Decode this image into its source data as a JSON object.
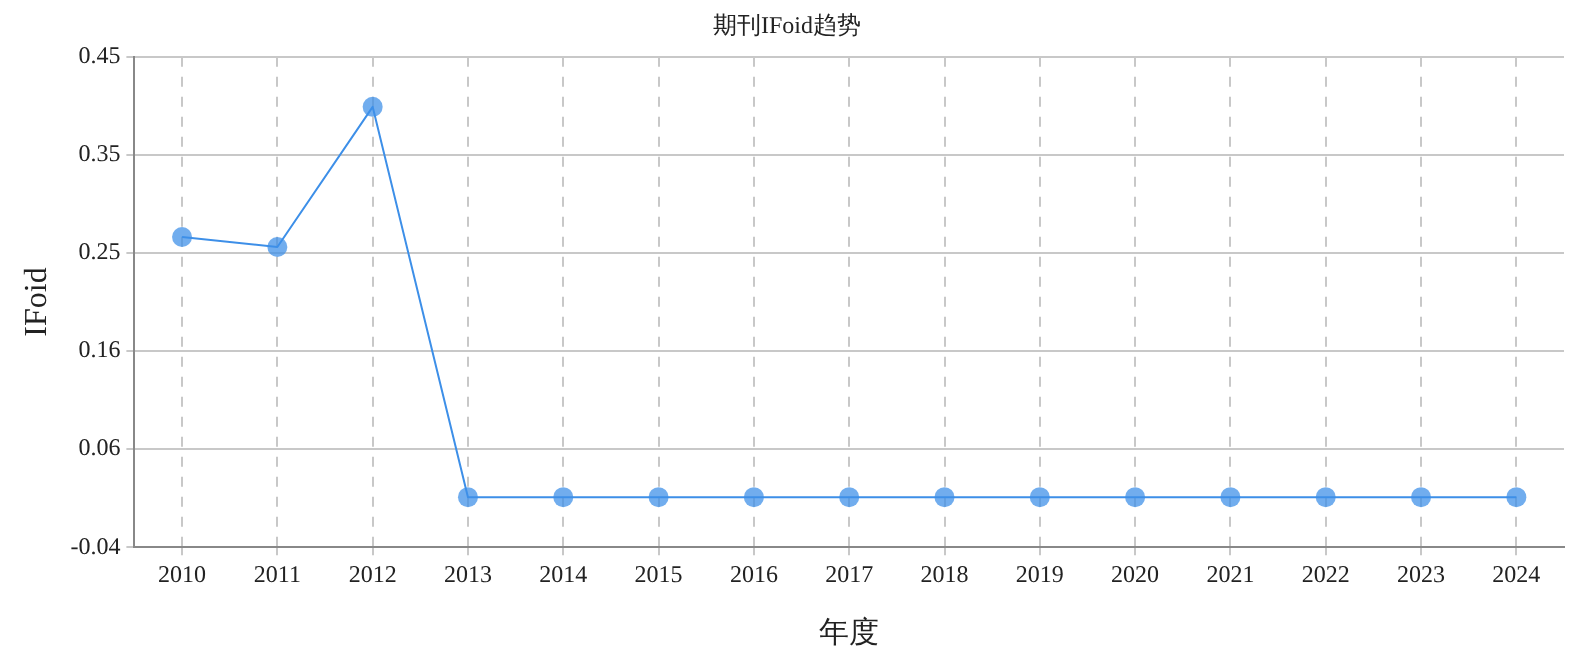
{
  "chart_data": {
    "type": "line",
    "title": "期刊IFoid趋势",
    "xlabel": "年度",
    "ylabel": "IFoid",
    "categories": [
      "2010",
      "2011",
      "2012",
      "2013",
      "2014",
      "2015",
      "2016",
      "2017",
      "2018",
      "2019",
      "2020",
      "2021",
      "2022",
      "2023",
      "2024"
    ],
    "series": [
      {
        "color": "#3d8fe8",
        "values": [
          0.27,
          0.26,
          0.4,
          0.01,
          0.01,
          0.01,
          0.01,
          0.01,
          0.01,
          0.01,
          0.01,
          0.01,
          0.01,
          0.01,
          0.01
        ]
      }
    ],
    "ylim": [
      -0.04,
      0.45
    ],
    "yticks": [
      -0.04,
      {
        "value": 0.058,
        "label": "0.06"
      },
      {
        "value": 0.156,
        "label": "0.16"
      },
      {
        "value": 0.254,
        "label": "0.25"
      },
      {
        "value": 0.352,
        "label": "0.35"
      },
      0.45
    ],
    "grid": true,
    "legend": false,
    "marker": "circle",
    "line_style": "solid"
  }
}
